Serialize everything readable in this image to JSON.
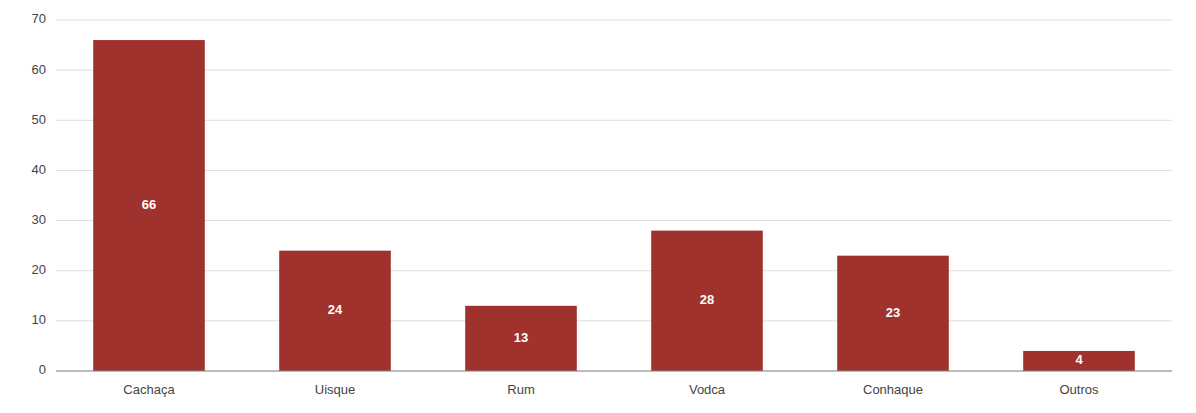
{
  "chart_data": {
    "type": "bar",
    "categories": [
      "Cachaça",
      "Uisque",
      "Rum",
      "Vodca",
      "Conhaque",
      "Outros"
    ],
    "values": [
      66,
      24,
      13,
      28,
      23,
      4
    ],
    "color": "#A0322D",
    "ylim": [
      0,
      70
    ],
    "yticks": [
      0,
      10,
      20,
      30,
      40,
      50,
      60,
      70
    ],
    "grid": true,
    "data_labels": true
  }
}
